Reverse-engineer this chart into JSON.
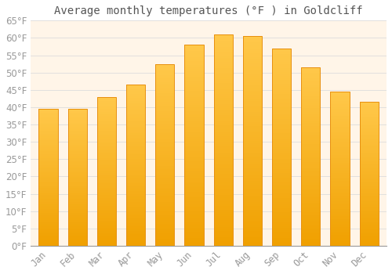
{
  "title": "Average monthly temperatures (°F ) in Goldcliff",
  "months": [
    "Jan",
    "Feb",
    "Mar",
    "Apr",
    "May",
    "Jun",
    "Jul",
    "Aug",
    "Sep",
    "Oct",
    "Nov",
    "Dec"
  ],
  "values": [
    39.5,
    39.5,
    43.0,
    46.5,
    52.5,
    58.0,
    61.0,
    60.5,
    57.0,
    51.5,
    44.5,
    41.5
  ],
  "bar_color_top": "#FFC84A",
  "bar_color_bottom": "#F0A000",
  "bar_edge_color": "#E89010",
  "background_color": "#FFFFFF",
  "plot_bg_color": "#FFF5E8",
  "grid_color": "#DDDDDD",
  "text_color": "#999999",
  "title_color": "#555555",
  "ylim": [
    0,
    65
  ],
  "yticks": [
    0,
    5,
    10,
    15,
    20,
    25,
    30,
    35,
    40,
    45,
    50,
    55,
    60,
    65
  ],
  "title_fontsize": 10,
  "tick_fontsize": 8.5,
  "bar_width": 0.65
}
